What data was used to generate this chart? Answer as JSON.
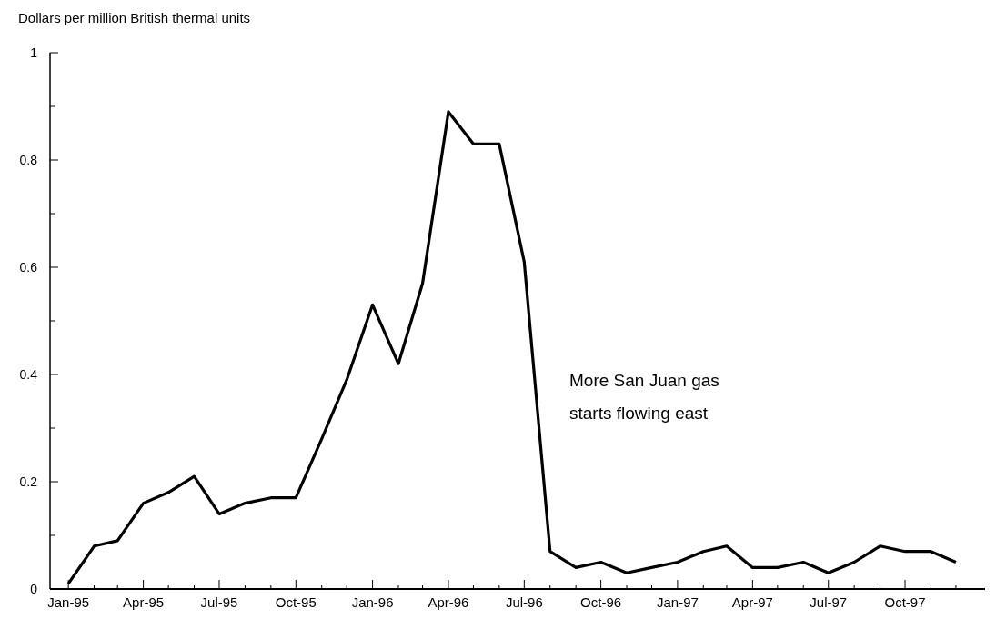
{
  "chart_data": {
    "type": "line",
    "ylabel": "Dollars per million British thermal units",
    "x": [
      "1995-01",
      "1995-02",
      "1995-03",
      "1995-04",
      "1995-05",
      "1995-06",
      "1995-07",
      "1995-08",
      "1995-09",
      "1995-10",
      "1995-11",
      "1995-12",
      "1996-01",
      "1996-02",
      "1996-03",
      "1996-04",
      "1996-05",
      "1996-06",
      "1996-07",
      "1996-08",
      "1996-09",
      "1996-10",
      "1996-11",
      "1996-12",
      "1997-01",
      "1997-02",
      "1997-03",
      "1997-04",
      "1997-05",
      "1997-06",
      "1997-07",
      "1997-08",
      "1997-09",
      "1997-10",
      "1997-11",
      "1997-12"
    ],
    "series": [
      {
        "color": "#000000",
        "values": [
          0.01,
          0.08,
          0.09,
          0.16,
          0.18,
          0.21,
          0.14,
          0.16,
          0.17,
          0.17,
          0.28,
          0.39,
          0.53,
          0.42,
          0.57,
          0.89,
          0.83,
          0.83,
          0.61,
          0.07,
          0.04,
          0.05,
          0.03,
          0.04,
          0.05,
          0.07,
          0.08,
          0.04,
          0.04,
          0.05,
          0.03,
          0.05,
          0.08,
          0.07,
          0.07,
          0.05
        ]
      }
    ],
    "xlim": [
      "1994-12-10",
      "1998-01-05"
    ],
    "xticks": [
      {
        "value": "1995-01",
        "label": "Jan-95"
      },
      {
        "value": "1995-02",
        "label": null
      },
      {
        "value": "1995-03",
        "label": null
      },
      {
        "value": "1995-04",
        "label": "Apr-95"
      },
      {
        "value": "1995-05",
        "label": null
      },
      {
        "value": "1995-06",
        "label": null
      },
      {
        "value": "1995-07",
        "label": "Jul-95"
      },
      {
        "value": "1995-08",
        "label": null
      },
      {
        "value": "1995-09",
        "label": null
      },
      {
        "value": "1995-10",
        "label": "Oct-95"
      },
      {
        "value": "1995-11",
        "label": null
      },
      {
        "value": "1995-12",
        "label": null
      },
      {
        "value": "1996-01",
        "label": "Jan-96"
      },
      {
        "value": "1996-02",
        "label": null
      },
      {
        "value": "1996-03",
        "label": null
      },
      {
        "value": "1996-04",
        "label": "Apr-96"
      },
      {
        "value": "1996-05",
        "label": null
      },
      {
        "value": "1996-06",
        "label": null
      },
      {
        "value": "1996-07",
        "label": "Jul-96"
      },
      {
        "value": "1996-08",
        "label": null
      },
      {
        "value": "1996-09",
        "label": null
      },
      {
        "value": "1996-10",
        "label": "Oct-96"
      },
      {
        "value": "1996-11",
        "label": null
      },
      {
        "value": "1996-12",
        "label": null
      },
      {
        "value": "1997-01",
        "label": "Jan-97"
      },
      {
        "value": "1997-02",
        "label": null
      },
      {
        "value": "1997-03",
        "label": null
      },
      {
        "value": "1997-04",
        "label": "Apr-97"
      },
      {
        "value": "1997-05",
        "label": null
      },
      {
        "value": "1997-06",
        "label": null
      },
      {
        "value": "1997-07",
        "label": "Jul-97"
      },
      {
        "value": "1997-08",
        "label": null
      },
      {
        "value": "1997-09",
        "label": null
      },
      {
        "value": "1997-10",
        "label": "Oct-97"
      },
      {
        "value": "1997-11",
        "label": null
      },
      {
        "value": "1997-12",
        "label": null
      }
    ],
    "ylim": [
      0,
      1
    ],
    "yticks": [
      0,
      {
        "value": 0.1,
        "label": null
      },
      0.2,
      {
        "value": 0.3,
        "label": null
      },
      0.4,
      {
        "value": 0.5,
        "label": null
      },
      0.6,
      {
        "value": 0.7,
        "label": null
      },
      0.8,
      {
        "value": 0.9,
        "label": null
      },
      1
    ],
    "grid": false,
    "marker": "none",
    "line_style": "solid",
    "annotations": [
      "More San Juan gas\nstarts flowing east"
    ]
  }
}
